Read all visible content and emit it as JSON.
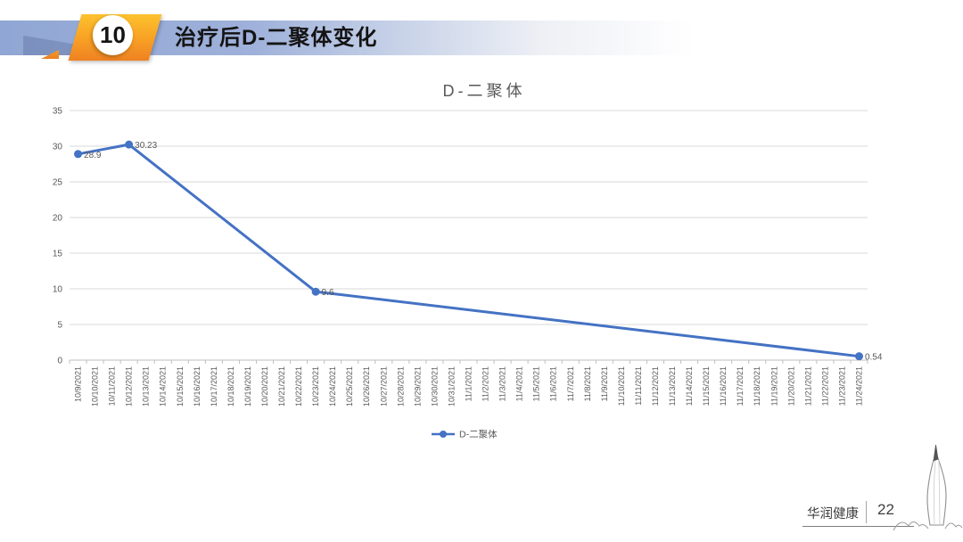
{
  "slide": {
    "badge_number": "10",
    "title": "治疗后D-二聚体变化"
  },
  "chart_data": {
    "type": "line",
    "title": "D-二聚体",
    "xlabel": "",
    "ylabel": "",
    "ylim": [
      0,
      35
    ],
    "y_ticks": [
      0,
      5,
      10,
      15,
      20,
      25,
      30,
      35
    ],
    "grid": true,
    "legend_position": "bottom",
    "x_tick_label_rotation": 90,
    "categories": [
      "10/9/2021",
      "10/10/2021",
      "10/11/2021",
      "10/12/2021",
      "10/13/2021",
      "10/14/2021",
      "10/15/2021",
      "10/16/2021",
      "10/17/2021",
      "10/18/2021",
      "10/19/2021",
      "10/20/2021",
      "10/21/2021",
      "10/22/2021",
      "10/23/2021",
      "10/24/2021",
      "10/25/2021",
      "10/26/2021",
      "10/27/2021",
      "10/28/2021",
      "10/29/2021",
      "10/30/2021",
      "10/31/2021",
      "11/1/2021",
      "11/2/2021",
      "11/3/2021",
      "11/4/2021",
      "11/5/2021",
      "11/6/2021",
      "11/7/2021",
      "11/8/2021",
      "11/9/2021",
      "11/10/2021",
      "11/11/2021",
      "11/12/2021",
      "11/13/2021",
      "11/14/2021",
      "11/15/2021",
      "11/16/2021",
      "11/17/2021",
      "11/18/2021",
      "11/19/2021",
      "11/20/2021",
      "11/21/2021",
      "11/22/2021",
      "11/23/2021",
      "11/24/2021"
    ],
    "series": [
      {
        "name": "D-二聚体",
        "color": "#4472c4",
        "points": [
          {
            "category": "10/9/2021",
            "value": 28.9,
            "label": "28.9"
          },
          {
            "category": "10/12/2021",
            "value": 30.23,
            "label": "30.23"
          },
          {
            "category": "10/23/2021",
            "value": 9.6,
            "label": "9.6"
          },
          {
            "category": "11/24/2021",
            "value": 0.54,
            "label": "0.54"
          }
        ]
      }
    ]
  },
  "footer": {
    "brand": "华润健康",
    "page_number": "22"
  },
  "colors": {
    "accent_line": "#4472c4",
    "banner_blue": "#90a6d4",
    "badge_orange_top": "#fcc22e",
    "badge_orange_bottom": "#ef8122",
    "text_gray": "#595959",
    "grid_gray": "#d9d9d9"
  }
}
